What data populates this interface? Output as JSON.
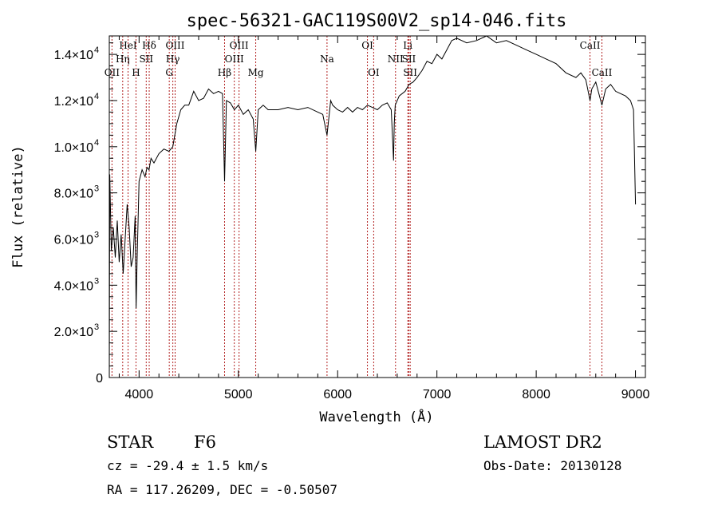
{
  "chart_data": {
    "type": "line",
    "title": "spec-56321-GAC119S00V2_sp14-046.fits",
    "xlabel": "Wavelength (Å)",
    "ylabel": "Flux (relative)",
    "xlim": [
      3700,
      9100
    ],
    "ylim": [
      0,
      14800
    ],
    "x_ticks": [
      {
        "value": 4000,
        "label": "4000"
      },
      {
        "value": 5000,
        "label": "5000"
      },
      {
        "value": 6000,
        "label": "6000"
      },
      {
        "value": 7000,
        "label": "7000"
      },
      {
        "value": 8000,
        "label": "8000"
      },
      {
        "value": 9000,
        "label": "9000"
      }
    ],
    "y_ticks": [
      {
        "value": 0,
        "mant": "0",
        "exp": ""
      },
      {
        "value": 2000,
        "mant": "2.0×10",
        "exp": "3"
      },
      {
        "value": 4000,
        "mant": "4.0×10",
        "exp": "3"
      },
      {
        "value": 6000,
        "mant": "6.0×10",
        "exp": "3"
      },
      {
        "value": 8000,
        "mant": "8.0×10",
        "exp": "3"
      },
      {
        "value": 10000,
        "mant": "1.0×10",
        "exp": "4"
      },
      {
        "value": 12000,
        "mant": "1.2×10",
        "exp": "4"
      },
      {
        "value": 14000,
        "mant": "1.4×10",
        "exp": "4"
      }
    ],
    "grid": false,
    "line_color": "#000000",
    "marker_color": "#b22222",
    "spectrum": {
      "wavelength": [
        3700,
        3705,
        3720,
        3740,
        3760,
        3780,
        3800,
        3820,
        3840,
        3860,
        3880,
        3900,
        3920,
        3940,
        3960,
        3970,
        3980,
        4000,
        4030,
        4060,
        4080,
        4100,
        4120,
        4150,
        4200,
        4250,
        4300,
        4340,
        4380,
        4420,
        4460,
        4500,
        4550,
        4600,
        4650,
        4700,
        4750,
        4800,
        4840,
        4861,
        4880,
        4920,
        4960,
        5000,
        5050,
        5100,
        5150,
        5175,
        5200,
        5250,
        5300,
        5400,
        5500,
        5600,
        5700,
        5800,
        5850,
        5893,
        5930,
        5950,
        6000,
        6050,
        6100,
        6150,
        6200,
        6250,
        6300,
        6350,
        6400,
        6450,
        6500,
        6540,
        6555,
        6563,
        6570,
        6580,
        6620,
        6680,
        6720,
        6760,
        6800,
        6850,
        6900,
        6950,
        7000,
        7050,
        7100,
        7150,
        7200,
        7300,
        7400,
        7500,
        7600,
        7700,
        7800,
        7900,
        8000,
        8100,
        8200,
        8300,
        8400,
        8450,
        8500,
        8542,
        8560,
        8600,
        8662,
        8700,
        8750,
        8800,
        8850,
        8900,
        8950,
        8980,
        9000
      ],
      "flux": [
        0,
        8800,
        5500,
        6500,
        5200,
        6800,
        5000,
        6200,
        4500,
        6000,
        7500,
        6500,
        4800,
        5200,
        7000,
        3000,
        5000,
        8500,
        9000,
        8700,
        9100,
        9000,
        9500,
        9300,
        9700,
        9900,
        9800,
        10000,
        11000,
        11600,
        11800,
        11800,
        12400,
        12000,
        12100,
        12500,
        12300,
        12400,
        12300,
        8500,
        12000,
        11900,
        11600,
        11800,
        11400,
        11600,
        11200,
        9800,
        11600,
        11800,
        11600,
        11600,
        11700,
        11600,
        11700,
        11500,
        11400,
        10500,
        12000,
        11800,
        11600,
        11500,
        11700,
        11500,
        11700,
        11600,
        11800,
        11700,
        11600,
        11800,
        11900,
        11600,
        10200,
        9400,
        11000,
        11800,
        12200,
        12400,
        12700,
        12800,
        13000,
        13300,
        13700,
        13600,
        14000,
        13800,
        14200,
        14600,
        14700,
        14500,
        14600,
        14800,
        14500,
        14600,
        14400,
        14200,
        14000,
        13800,
        13600,
        13200,
        13000,
        13200,
        12900,
        12000,
        12500,
        12800,
        11800,
        12500,
        12700,
        12400,
        12300,
        12200,
        12000,
        11600,
        7500
      ]
    },
    "line_ids": [
      {
        "label": "OII",
        "wavelength": 3727,
        "row": 3
      },
      {
        "label": "Hη",
        "wavelength": 3835,
        "row": 2
      },
      {
        "label": "HeI",
        "wavelength": 3889,
        "row": 1
      },
      {
        "label": "H",
        "wavelength": 3969,
        "row": 3
      },
      {
        "label": "SII",
        "wavelength": 4072,
        "row": 2
      },
      {
        "label": "Hδ",
        "wavelength": 4102,
        "row": 1
      },
      {
        "label": "G",
        "wavelength": 4304,
        "row": 3
      },
      {
        "label": "Hγ",
        "wavelength": 4340,
        "row": 2
      },
      {
        "label": "OIII",
        "wavelength": 4363,
        "row": 1
      },
      {
        "label": "Hβ",
        "wavelength": 4861,
        "row": 3
      },
      {
        "label": "OIII",
        "wavelength": 4959,
        "row": 2
      },
      {
        "label": "OIII",
        "wavelength": 5007,
        "row": 1
      },
      {
        "label": "Mg",
        "wavelength": 5175,
        "row": 3
      },
      {
        "label": "Na",
        "wavelength": 5893,
        "row": 2
      },
      {
        "label": "OI",
        "wavelength": 6300,
        "row": 1
      },
      {
        "label": "OI",
        "wavelength": 6363,
        "row": 3
      },
      {
        "label": "NII",
        "wavelength": 6583,
        "row": 2
      },
      {
        "label": "Li",
        "wavelength": 6707,
        "row": 1
      },
      {
        "label": "SII",
        "wavelength": 6717,
        "row": 2
      },
      {
        "label": "SII",
        "wavelength": 6731,
        "row": 3
      },
      {
        "label": "CaII",
        "wavelength": 8542,
        "row": 1
      },
      {
        "label": "CaII",
        "wavelength": 8662,
        "row": 3
      }
    ]
  },
  "info": {
    "class": "STAR",
    "subclass": "F6",
    "survey": "LAMOST DR2",
    "redshift": "cz = -29.4 ± 1.5 km/s",
    "obs_date": "Obs-Date: 20130128",
    "coords": "RA = 117.26209, DEC =  -0.50507"
  }
}
